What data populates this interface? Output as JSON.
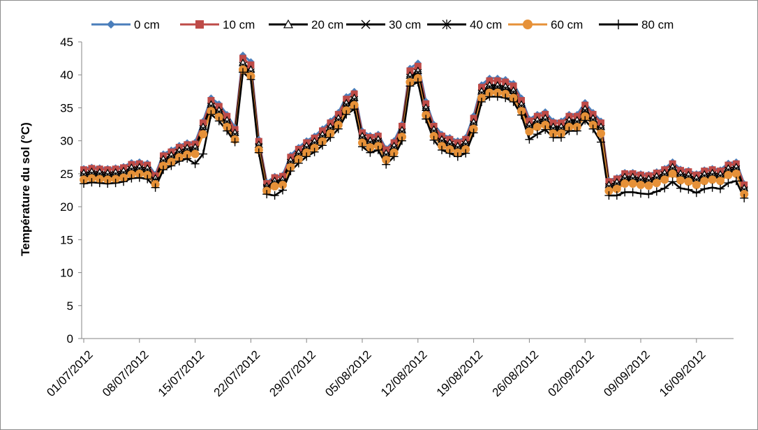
{
  "chart_data": {
    "type": "line",
    "title": "",
    "xlabel": "",
    "ylabel": "Température du sol (°C)",
    "ylim": [
      0,
      45
    ],
    "yticks": [
      0,
      5,
      10,
      15,
      20,
      25,
      30,
      35,
      40,
      45
    ],
    "x_start": "2012-07-01",
    "x_tick_labels": [
      "01/07/2012",
      "08/07/2012",
      "15/07/2012",
      "22/07/2012",
      "29/07/2012",
      "05/08/2012",
      "12/08/2012",
      "19/08/2012",
      "26/08/2012",
      "02/09/2012",
      "09/09/2012",
      "16/09/2012"
    ],
    "grid": false,
    "legend_position": "top",
    "x": [
      "01/07/2012",
      "02/07/2012",
      "03/07/2012",
      "04/07/2012",
      "05/07/2012",
      "06/07/2012",
      "07/07/2012",
      "08/07/2012",
      "09/07/2012",
      "10/07/2012",
      "11/07/2012",
      "12/07/2012",
      "13/07/2012",
      "14/07/2012",
      "15/07/2012",
      "16/07/2012",
      "17/07/2012",
      "18/07/2012",
      "19/07/2012",
      "20/07/2012",
      "21/07/2012",
      "22/07/2012",
      "23/07/2012",
      "24/07/2012",
      "25/07/2012",
      "26/07/2012",
      "27/07/2012",
      "28/07/2012",
      "29/07/2012",
      "30/07/2012",
      "31/07/2012",
      "01/08/2012",
      "02/08/2012",
      "03/08/2012",
      "04/08/2012",
      "05/08/2012",
      "06/08/2012",
      "07/08/2012",
      "08/08/2012",
      "09/08/2012",
      "10/08/2012",
      "11/08/2012",
      "12/08/2012",
      "13/08/2012",
      "14/08/2012",
      "15/08/2012",
      "16/08/2012",
      "17/08/2012",
      "18/08/2012",
      "19/08/2012",
      "20/08/2012",
      "21/08/2012",
      "22/08/2012",
      "23/08/2012",
      "24/08/2012",
      "25/08/2012",
      "26/08/2012",
      "27/08/2012",
      "28/08/2012",
      "29/08/2012",
      "30/08/2012",
      "31/08/2012",
      "01/09/2012",
      "02/09/2012",
      "03/09/2012",
      "04/09/2012",
      "05/09/2012",
      "06/09/2012",
      "07/09/2012",
      "08/09/2012",
      "09/09/2012",
      "10/09/2012",
      "11/09/2012",
      "12/09/2012",
      "13/09/2012",
      "14/09/2012",
      "15/09/2012",
      "16/09/2012",
      "17/09/2012",
      "18/09/2012",
      "19/09/2012",
      "20/09/2012",
      "21/09/2012",
      "22/09/2012"
    ],
    "series": [
      {
        "name": "0 cm",
        "color": "#4a7ebb",
        "marker": "diamond",
        "values": [
          25.8,
          26.0,
          25.9,
          25.8,
          25.9,
          26.1,
          26.7,
          26.8,
          26.6,
          24.9,
          28.0,
          28.6,
          29.3,
          29.7,
          29.8,
          33.0,
          36.5,
          35.6,
          34.0,
          32.0,
          43.0,
          42.0,
          30.2,
          23.7,
          24.6,
          24.8,
          27.8,
          29.0,
          30.0,
          30.7,
          31.8,
          33.0,
          34.3,
          36.7,
          37.5,
          31.5,
          30.8,
          31.0,
          28.8,
          30.0,
          32.5,
          41.0,
          41.8,
          36.0,
          32.5,
          31.0,
          30.5,
          30.0,
          30.5,
          33.8,
          38.5,
          39.5,
          39.5,
          39.3,
          38.7,
          36.5,
          33.3,
          34.0,
          34.4,
          33.0,
          33.0,
          34.0,
          34.0,
          35.8,
          34.3,
          33.0,
          24.0,
          24.4,
          25.2,
          25.2,
          25.0,
          24.9,
          25.3,
          25.8,
          26.8,
          25.7,
          25.5,
          25.0,
          25.6,
          25.8,
          25.6,
          26.6,
          26.8,
          23.5
        ]
      },
      {
        "name": "10 cm",
        "color": "#be4b48",
        "marker": "square",
        "values": [
          25.6,
          25.8,
          25.7,
          25.6,
          25.7,
          25.9,
          26.4,
          26.5,
          26.3,
          24.7,
          27.7,
          28.3,
          29.0,
          29.4,
          29.5,
          32.7,
          36.1,
          35.2,
          33.7,
          31.7,
          42.5,
          41.5,
          29.9,
          23.5,
          24.4,
          24.6,
          27.5,
          28.7,
          29.7,
          30.4,
          31.5,
          32.7,
          34.0,
          36.3,
          37.1,
          31.2,
          30.5,
          30.7,
          28.6,
          29.7,
          32.2,
          40.6,
          41.3,
          35.6,
          32.2,
          30.7,
          30.2,
          29.7,
          30.2,
          33.4,
          38.1,
          39.1,
          39.1,
          38.9,
          38.3,
          36.1,
          33.0,
          33.7,
          34.0,
          32.7,
          32.7,
          33.7,
          33.7,
          35.4,
          34.0,
          32.7,
          23.8,
          24.2,
          25.0,
          25.0,
          24.8,
          24.7,
          25.1,
          25.6,
          26.5,
          25.5,
          25.3,
          24.8,
          25.4,
          25.6,
          25.4,
          26.3,
          26.5,
          23.3
        ]
      },
      {
        "name": "20 cm",
        "color": "#000000",
        "marker": "triangle",
        "values": [
          25.1,
          25.3,
          25.2,
          25.1,
          25.2,
          25.4,
          25.9,
          26.0,
          25.8,
          24.3,
          27.2,
          27.8,
          28.5,
          28.9,
          29.0,
          32.1,
          35.5,
          34.6,
          33.1,
          31.2,
          41.8,
          40.8,
          29.4,
          23.1,
          23.9,
          24.1,
          27.0,
          28.2,
          29.2,
          29.9,
          30.9,
          32.1,
          33.4,
          35.7,
          36.5,
          30.7,
          30.0,
          30.2,
          28.1,
          29.2,
          31.6,
          39.9,
          40.6,
          35.0,
          31.7,
          30.2,
          29.7,
          29.2,
          29.7,
          32.8,
          37.5,
          38.4,
          38.4,
          38.2,
          37.6,
          35.5,
          32.4,
          33.1,
          33.4,
          32.1,
          32.1,
          33.1,
          33.1,
          34.8,
          33.4,
          32.1,
          23.3,
          23.7,
          24.5,
          24.5,
          24.3,
          24.2,
          24.6,
          25.1,
          26.0,
          25.0,
          24.8,
          24.3,
          24.9,
          25.1,
          24.9,
          25.8,
          26.0,
          22.8
        ]
      },
      {
        "name": "30 cm",
        "color": "#000000",
        "marker": "x",
        "values": [
          24.8,
          25.0,
          24.9,
          24.8,
          24.9,
          25.1,
          25.6,
          25.7,
          25.5,
          24.0,
          26.9,
          27.5,
          28.2,
          28.6,
          28.7,
          31.8,
          35.2,
          34.3,
          32.8,
          30.9,
          41.4,
          40.4,
          29.1,
          22.9,
          23.6,
          23.8,
          26.7,
          27.9,
          28.9,
          29.6,
          30.6,
          31.8,
          33.1,
          35.4,
          36.2,
          30.4,
          29.7,
          29.9,
          27.8,
          28.9,
          31.3,
          39.6,
          40.3,
          34.7,
          31.4,
          29.9,
          29.4,
          28.9,
          29.4,
          32.5,
          37.2,
          38.1,
          38.1,
          37.9,
          37.3,
          35.2,
          32.1,
          32.8,
          33.1,
          31.8,
          31.8,
          32.8,
          32.8,
          34.5,
          33.1,
          31.8,
          23.0,
          23.4,
          24.2,
          24.2,
          24.0,
          23.9,
          24.3,
          24.8,
          25.7,
          24.7,
          24.5,
          24.0,
          24.6,
          24.8,
          24.6,
          25.5,
          25.7,
          22.5
        ]
      },
      {
        "name": "40 cm",
        "color": "#000000",
        "marker": "star",
        "values": [
          24.5,
          24.7,
          24.6,
          24.5,
          24.6,
          24.8,
          25.3,
          25.4,
          25.2,
          23.8,
          26.6,
          27.2,
          27.9,
          28.3,
          28.4,
          31.5,
          34.9,
          34.0,
          32.5,
          30.6,
          41.1,
          40.1,
          28.9,
          22.7,
          23.4,
          23.6,
          26.4,
          27.6,
          28.6,
          29.3,
          30.3,
          31.5,
          32.8,
          35.1,
          35.9,
          30.1,
          29.4,
          29.6,
          27.5,
          28.6,
          31.0,
          39.3,
          40.0,
          34.4,
          31.1,
          29.6,
          29.1,
          28.6,
          29.1,
          32.2,
          36.9,
          37.8,
          37.8,
          37.6,
          37.0,
          34.9,
          31.8,
          32.5,
          32.8,
          31.5,
          31.5,
          32.5,
          32.5,
          34.2,
          32.8,
          31.5,
          22.7,
          23.1,
          23.9,
          23.9,
          23.7,
          23.6,
          24.0,
          24.5,
          25.4,
          24.4,
          24.2,
          23.7,
          24.3,
          24.5,
          24.3,
          25.2,
          25.4,
          22.2
        ]
      },
      {
        "name": "60 cm",
        "color": "#e69138",
        "marker": "circle",
        "values": [
          24.1,
          24.3,
          24.2,
          24.1,
          24.2,
          24.4,
          24.9,
          25.0,
          24.8,
          23.4,
          26.2,
          26.8,
          27.5,
          27.9,
          28.0,
          31.0,
          34.5,
          33.6,
          32.1,
          30.2,
          40.8,
          39.8,
          28.6,
          22.4,
          23.1,
          23.3,
          26.0,
          27.2,
          28.2,
          28.9,
          29.9,
          31.1,
          32.4,
          34.6,
          35.4,
          29.7,
          29.0,
          29.2,
          27.1,
          28.2,
          30.6,
          38.9,
          39.5,
          33.9,
          30.7,
          29.2,
          28.7,
          28.2,
          28.7,
          31.8,
          36.5,
          37.3,
          37.3,
          37.1,
          36.5,
          34.5,
          31.4,
          32.1,
          32.4,
          31.1,
          31.1,
          32.1,
          32.1,
          33.7,
          32.4,
          31.1,
          22.4,
          22.7,
          23.5,
          23.5,
          23.3,
          23.2,
          23.6,
          24.1,
          25.0,
          24.0,
          23.8,
          23.3,
          23.9,
          24.1,
          23.9,
          24.8,
          25.0,
          21.9
        ]
      },
      {
        "name": "80 cm",
        "color": "#000000",
        "marker": "plus",
        "values": [
          23.5,
          23.7,
          23.6,
          23.5,
          23.6,
          23.8,
          24.3,
          24.4,
          24.2,
          22.9,
          25.6,
          26.2,
          26.9,
          27.3,
          26.5,
          28.0,
          34.0,
          33.0,
          31.5,
          29.8,
          40.4,
          39.3,
          28.2,
          21.9,
          21.7,
          22.5,
          25.4,
          26.6,
          27.6,
          28.3,
          29.3,
          30.5,
          31.8,
          34.0,
          34.8,
          29.1,
          28.2,
          28.6,
          26.4,
          27.6,
          30.0,
          38.3,
          38.9,
          33.3,
          30.1,
          28.6,
          28.1,
          27.6,
          28.1,
          31.2,
          35.9,
          36.7,
          36.7,
          36.5,
          35.9,
          33.9,
          30.2,
          31.0,
          31.7,
          30.5,
          30.5,
          31.5,
          31.5,
          33.1,
          31.8,
          29.8,
          21.7,
          21.7,
          22.2,
          22.2,
          22.0,
          21.9,
          22.3,
          22.8,
          23.8,
          22.8,
          22.6,
          22.1,
          22.7,
          22.9,
          22.7,
          23.6,
          23.9,
          21.3
        ]
      }
    ]
  }
}
